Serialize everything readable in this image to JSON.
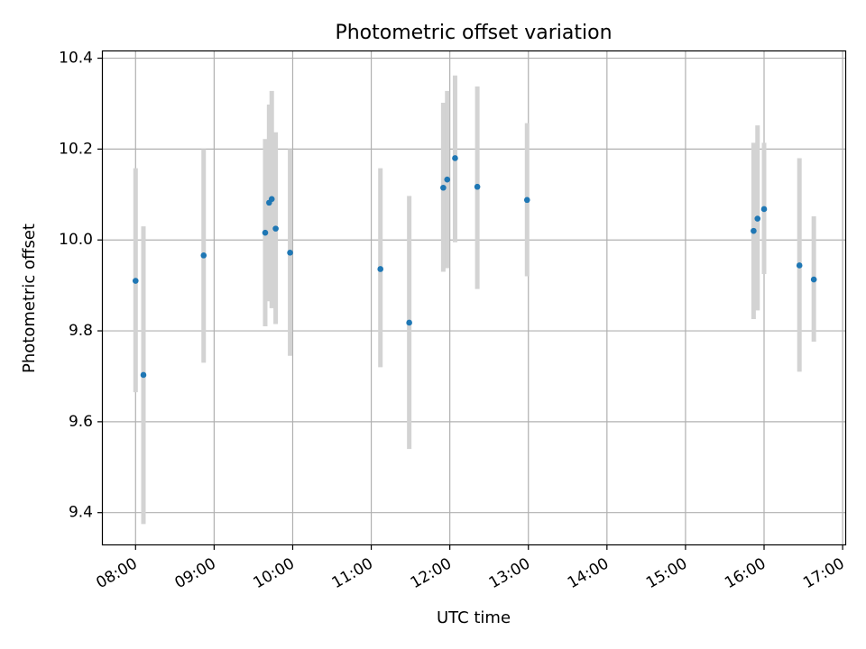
{
  "chart_data": {
    "type": "scatter",
    "title": "Photometric offset variation",
    "xlabel": "UTC time",
    "ylabel": "Photometric offset",
    "grid": true,
    "xlim": [
      "07:35",
      "17:02"
    ],
    "ylim": [
      9.33,
      10.415
    ],
    "x_ticks": [
      "08:00",
      "09:00",
      "10:00",
      "11:00",
      "12:00",
      "13:00",
      "14:00",
      "15:00",
      "16:00",
      "17:00"
    ],
    "y_ticks": [
      9.4,
      9.6,
      9.8,
      10.0,
      10.2,
      10.4
    ],
    "y_tick_labels": [
      "9.4",
      "9.6",
      "9.8",
      "10.0",
      "10.2",
      "10.4"
    ],
    "marker_color": "#1f77b4",
    "errorbar_color": "#d3d3d3",
    "points": [
      {
        "x": "08:00",
        "y": 9.91,
        "lo": 9.665,
        "hi": 10.158
      },
      {
        "x": "08:06",
        "y": 9.703,
        "lo": 9.375,
        "hi": 10.03
      },
      {
        "x": "08:52",
        "y": 9.966,
        "lo": 9.73,
        "hi": 10.2
      },
      {
        "x": "09:39",
        "y": 10.016,
        "lo": 9.81,
        "hi": 10.222
      },
      {
        "x": "09:42",
        "y": 10.082,
        "lo": 9.865,
        "hi": 10.298
      },
      {
        "x": "09:44",
        "y": 10.09,
        "lo": 9.85,
        "hi": 10.328
      },
      {
        "x": "09:47",
        "y": 10.025,
        "lo": 9.815,
        "hi": 10.237
      },
      {
        "x": "09:58",
        "y": 9.972,
        "lo": 9.745,
        "hi": 10.2
      },
      {
        "x": "11:07",
        "y": 9.936,
        "lo": 9.72,
        "hi": 10.158
      },
      {
        "x": "11:29",
        "y": 9.818,
        "lo": 9.54,
        "hi": 10.097
      },
      {
        "x": "11:55",
        "y": 10.115,
        "lo": 9.93,
        "hi": 10.302
      },
      {
        "x": "11:58",
        "y": 10.133,
        "lo": 9.938,
        "hi": 10.328
      },
      {
        "x": "12:04",
        "y": 10.18,
        "lo": 9.995,
        "hi": 10.362
      },
      {
        "x": "12:21",
        "y": 10.117,
        "lo": 9.892,
        "hi": 10.338
      },
      {
        "x": "12:59",
        "y": 10.088,
        "lo": 9.92,
        "hi": 10.257
      },
      {
        "x": "15:52",
        "y": 10.02,
        "lo": 9.826,
        "hi": 10.214
      },
      {
        "x": "15:55",
        "y": 10.047,
        "lo": 9.845,
        "hi": 10.252
      },
      {
        "x": "16:00",
        "y": 10.068,
        "lo": 9.925,
        "hi": 10.214
      },
      {
        "x": "16:27",
        "y": 9.944,
        "lo": 9.71,
        "hi": 10.18
      },
      {
        "x": "16:38",
        "y": 9.913,
        "lo": 9.776,
        "hi": 10.052
      }
    ]
  }
}
